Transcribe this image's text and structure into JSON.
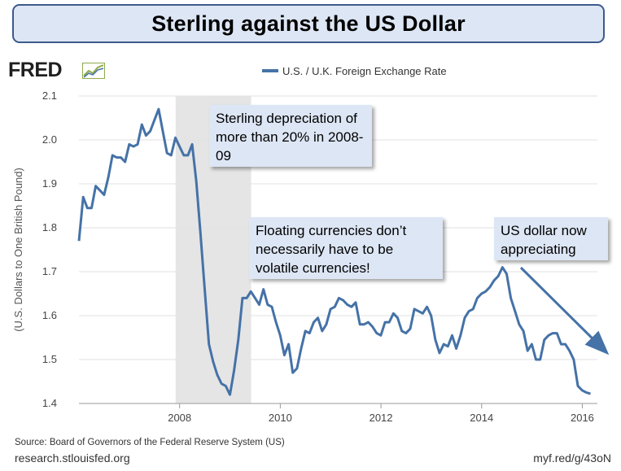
{
  "header": {
    "title": "Sterling against the US Dollar"
  },
  "branding": {
    "logo": "FRED",
    "logo_icon": "trend-line-icon"
  },
  "footer": {
    "source": "Source: Board of Governors of the Federal Reserve System (US)",
    "site": "research.stlouisfed.org",
    "shortlink": "myf.red/g/43oN"
  },
  "annotations": {
    "depreciation": "Sterling depreciation of more than 20% in 2008-09",
    "floating": "Floating currencies don’t necessarily have to be volatile currencies!",
    "appreciating": "US dollar now appreciating"
  },
  "colors": {
    "line": "#4572a7",
    "recession": "#e5e5e5",
    "callout": "#dde6f4",
    "title_border": "#3d5a8c"
  },
  "chart_data": {
    "type": "line",
    "title": "",
    "xlabel": "",
    "ylabel": "(U.S. Dollars to One British Pound)",
    "legend": "U.S. / U.K. Foreign Exchange Rate",
    "xlim": [
      2006.0,
      2016.3
    ],
    "ylim": [
      1.4,
      2.1
    ],
    "yticks": [
      1.4,
      1.5,
      1.6,
      1.7,
      1.8,
      1.9,
      2.0,
      2.1
    ],
    "xticks": [
      2008,
      2010,
      2012,
      2014,
      2016
    ],
    "recession_band": [
      2007.92,
      2009.42
    ],
    "series": [
      {
        "name": "U.S. / U.K. Foreign Exchange Rate",
        "start": 2006.0,
        "step": 0.0833,
        "values": [
          1.77,
          1.87,
          1.845,
          1.845,
          1.895,
          1.885,
          1.875,
          1.915,
          1.965,
          1.96,
          1.96,
          1.95,
          1.99,
          1.985,
          1.99,
          2.035,
          2.01,
          2.02,
          2.045,
          2.07,
          2.02,
          1.97,
          1.965,
          2.005,
          1.985,
          1.965,
          1.965,
          1.99,
          1.905,
          1.785,
          1.66,
          1.535,
          1.495,
          1.465,
          1.445,
          1.44,
          1.42,
          1.475,
          1.545,
          1.64,
          1.64,
          1.655,
          1.64,
          1.625,
          1.66,
          1.625,
          1.62,
          1.585,
          1.555,
          1.51,
          1.535,
          1.47,
          1.48,
          1.525,
          1.565,
          1.56,
          1.585,
          1.595,
          1.565,
          1.58,
          1.615,
          1.62,
          1.64,
          1.635,
          1.625,
          1.62,
          1.63,
          1.58,
          1.58,
          1.585,
          1.575,
          1.56,
          1.555,
          1.585,
          1.585,
          1.605,
          1.595,
          1.565,
          1.56,
          1.57,
          1.615,
          1.61,
          1.605,
          1.62,
          1.6,
          1.545,
          1.515,
          1.535,
          1.53,
          1.555,
          1.525,
          1.555,
          1.595,
          1.61,
          1.615,
          1.64,
          1.65,
          1.655,
          1.665,
          1.68,
          1.69,
          1.71,
          1.695,
          1.64,
          1.61,
          1.58,
          1.565,
          1.52,
          1.535,
          1.5,
          1.5,
          1.545,
          1.555,
          1.56,
          1.56,
          1.535,
          1.535,
          1.52,
          1.5,
          1.44,
          1.43,
          1.425,
          1.422
        ]
      }
    ]
  }
}
